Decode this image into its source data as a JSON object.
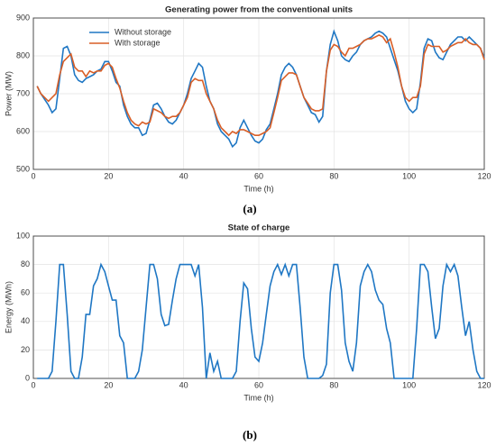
{
  "chart_data": [
    {
      "type": "line",
      "title": "Generating power from the conventional units",
      "xlabel": "Time (h)",
      "ylabel": "Power (MW)",
      "caption": "(a)",
      "xlim": [
        0,
        120
      ],
      "xticks": [
        0,
        20,
        40,
        60,
        80,
        100,
        120
      ],
      "ylim": [
        500,
        900
      ],
      "yticks": [
        500,
        600,
        700,
        800,
        900
      ],
      "grid": true,
      "legend": "upper left",
      "x": [
        1,
        2,
        3,
        4,
        5,
        6,
        7,
        8,
        9,
        10,
        11,
        12,
        13,
        14,
        15,
        16,
        17,
        18,
        19,
        20,
        21,
        22,
        23,
        24,
        25,
        26,
        27,
        28,
        29,
        30,
        31,
        32,
        33,
        34,
        35,
        36,
        37,
        38,
        39,
        40,
        41,
        42,
        43,
        44,
        45,
        46,
        47,
        48,
        49,
        50,
        51,
        52,
        53,
        54,
        55,
        56,
        57,
        58,
        59,
        60,
        61,
        62,
        63,
        64,
        65,
        66,
        67,
        68,
        69,
        70,
        71,
        72,
        73,
        74,
        75,
        76,
        77,
        78,
        79,
        80,
        81,
        82,
        83,
        84,
        85,
        86,
        87,
        88,
        89,
        90,
        91,
        92,
        93,
        94,
        95,
        96,
        97,
        98,
        99,
        100,
        101,
        102,
        103,
        104,
        105,
        106,
        107,
        108,
        109,
        110,
        111,
        112,
        113,
        114,
        115,
        116,
        117,
        118,
        119,
        120
      ],
      "series": [
        {
          "name": "Without storage",
          "color": "#1f77c4",
          "values": [
            720,
            700,
            685,
            670,
            650,
            660,
            740,
            820,
            825,
            800,
            750,
            735,
            730,
            740,
            745,
            750,
            760,
            765,
            785,
            785,
            760,
            730,
            720,
            670,
            640,
            620,
            610,
            610,
            590,
            595,
            630,
            670,
            675,
            660,
            640,
            625,
            620,
            630,
            650,
            670,
            700,
            740,
            760,
            780,
            770,
            720,
            680,
            660,
            620,
            600,
            590,
            580,
            560,
            570,
            610,
            630,
            610,
            590,
            575,
            570,
            580,
            605,
            620,
            660,
            700,
            750,
            770,
            780,
            770,
            750,
            720,
            690,
            670,
            650,
            645,
            625,
            640,
            760,
            830,
            865,
            840,
            800,
            790,
            785,
            800,
            810,
            830,
            840,
            845,
            850,
            860,
            865,
            860,
            850,
            820,
            790,
            760,
            720,
            680,
            660,
            650,
            660,
            730,
            820,
            845,
            840,
            810,
            795,
            790,
            810,
            830,
            840,
            850,
            850,
            840,
            850,
            840,
            830,
            820,
            795
          ]
        },
        {
          "name": "With storage",
          "color": "#d95f27",
          "values": [
            720,
            700,
            690,
            680,
            690,
            700,
            750,
            785,
            795,
            805,
            770,
            760,
            760,
            745,
            760,
            755,
            760,
            760,
            775,
            780,
            770,
            740,
            715,
            680,
            650,
            630,
            620,
            615,
            625,
            620,
            625,
            660,
            655,
            650,
            640,
            635,
            640,
            640,
            650,
            670,
            690,
            730,
            740,
            735,
            735,
            700,
            680,
            660,
            630,
            610,
            600,
            590,
            600,
            595,
            605,
            605,
            600,
            595,
            590,
            590,
            595,
            600,
            610,
            650,
            690,
            735,
            745,
            755,
            755,
            750,
            720,
            690,
            675,
            660,
            655,
            655,
            660,
            760,
            815,
            830,
            825,
            810,
            800,
            820,
            820,
            825,
            830,
            840,
            845,
            845,
            850,
            855,
            850,
            835,
            845,
            810,
            770,
            720,
            690,
            680,
            690,
            690,
            720,
            805,
            830,
            825,
            825,
            825,
            810,
            815,
            825,
            830,
            835,
            835,
            845,
            835,
            830,
            830,
            820,
            790
          ]
        }
      ]
    },
    {
      "type": "line",
      "title": "State of charge",
      "xlabel": "Time (h)",
      "ylabel": "Energy (MWh)",
      "caption": "(b)",
      "xlim": [
        0,
        120
      ],
      "xticks": [
        0,
        20,
        40,
        60,
        80,
        100,
        120
      ],
      "ylim": [
        0,
        100
      ],
      "yticks": [
        0,
        20,
        40,
        60,
        80,
        100
      ],
      "grid": true,
      "x": [
        1,
        2,
        3,
        4,
        5,
        6,
        7,
        8,
        9,
        10,
        11,
        12,
        13,
        14,
        15,
        16,
        17,
        18,
        19,
        20,
        21,
        22,
        23,
        24,
        25,
        26,
        27,
        28,
        29,
        30,
        31,
        32,
        33,
        34,
        35,
        36,
        37,
        38,
        39,
        40,
        41,
        42,
        43,
        44,
        45,
        46,
        47,
        48,
        49,
        50,
        51,
        52,
        53,
        54,
        55,
        56,
        57,
        58,
        59,
        60,
        61,
        62,
        63,
        64,
        65,
        66,
        67,
        68,
        69,
        70,
        71,
        72,
        73,
        74,
        75,
        76,
        77,
        78,
        79,
        80,
        81,
        82,
        83,
        84,
        85,
        86,
        87,
        88,
        89,
        90,
        91,
        92,
        93,
        94,
        95,
        96,
        97,
        98,
        99,
        100,
        101,
        102,
        103,
        104,
        105,
        106,
        107,
        108,
        109,
        110,
        111,
        112,
        113,
        114,
        115,
        116,
        117,
        118,
        119,
        120
      ],
      "series": [
        {
          "color": "#1f77c4",
          "values": [
            0,
            0,
            0,
            0,
            5,
            40,
            80,
            80,
            45,
            5,
            0,
            0,
            15,
            45,
            45,
            65,
            70,
            80,
            75,
            65,
            55,
            55,
            30,
            25,
            0,
            0,
            0,
            5,
            20,
            50,
            80,
            80,
            70,
            45,
            37,
            38,
            55,
            70,
            80,
            80,
            80,
            80,
            72,
            80,
            50,
            0,
            18,
            5,
            12,
            0,
            0,
            0,
            0,
            5,
            40,
            67,
            63,
            35,
            15,
            12,
            25,
            45,
            65,
            75,
            80,
            73,
            80,
            72,
            80,
            80,
            50,
            15,
            0,
            0,
            0,
            0,
            2,
            10,
            60,
            80,
            80,
            62,
            25,
            12,
            5,
            25,
            65,
            75,
            80,
            75,
            62,
            55,
            52,
            35,
            25,
            0,
            0,
            0,
            0,
            0,
            0,
            35,
            80,
            80,
            75,
            50,
            28,
            35,
            65,
            80,
            75,
            80,
            72,
            50,
            30,
            40,
            20,
            5,
            0,
            0
          ]
        }
      ]
    }
  ]
}
